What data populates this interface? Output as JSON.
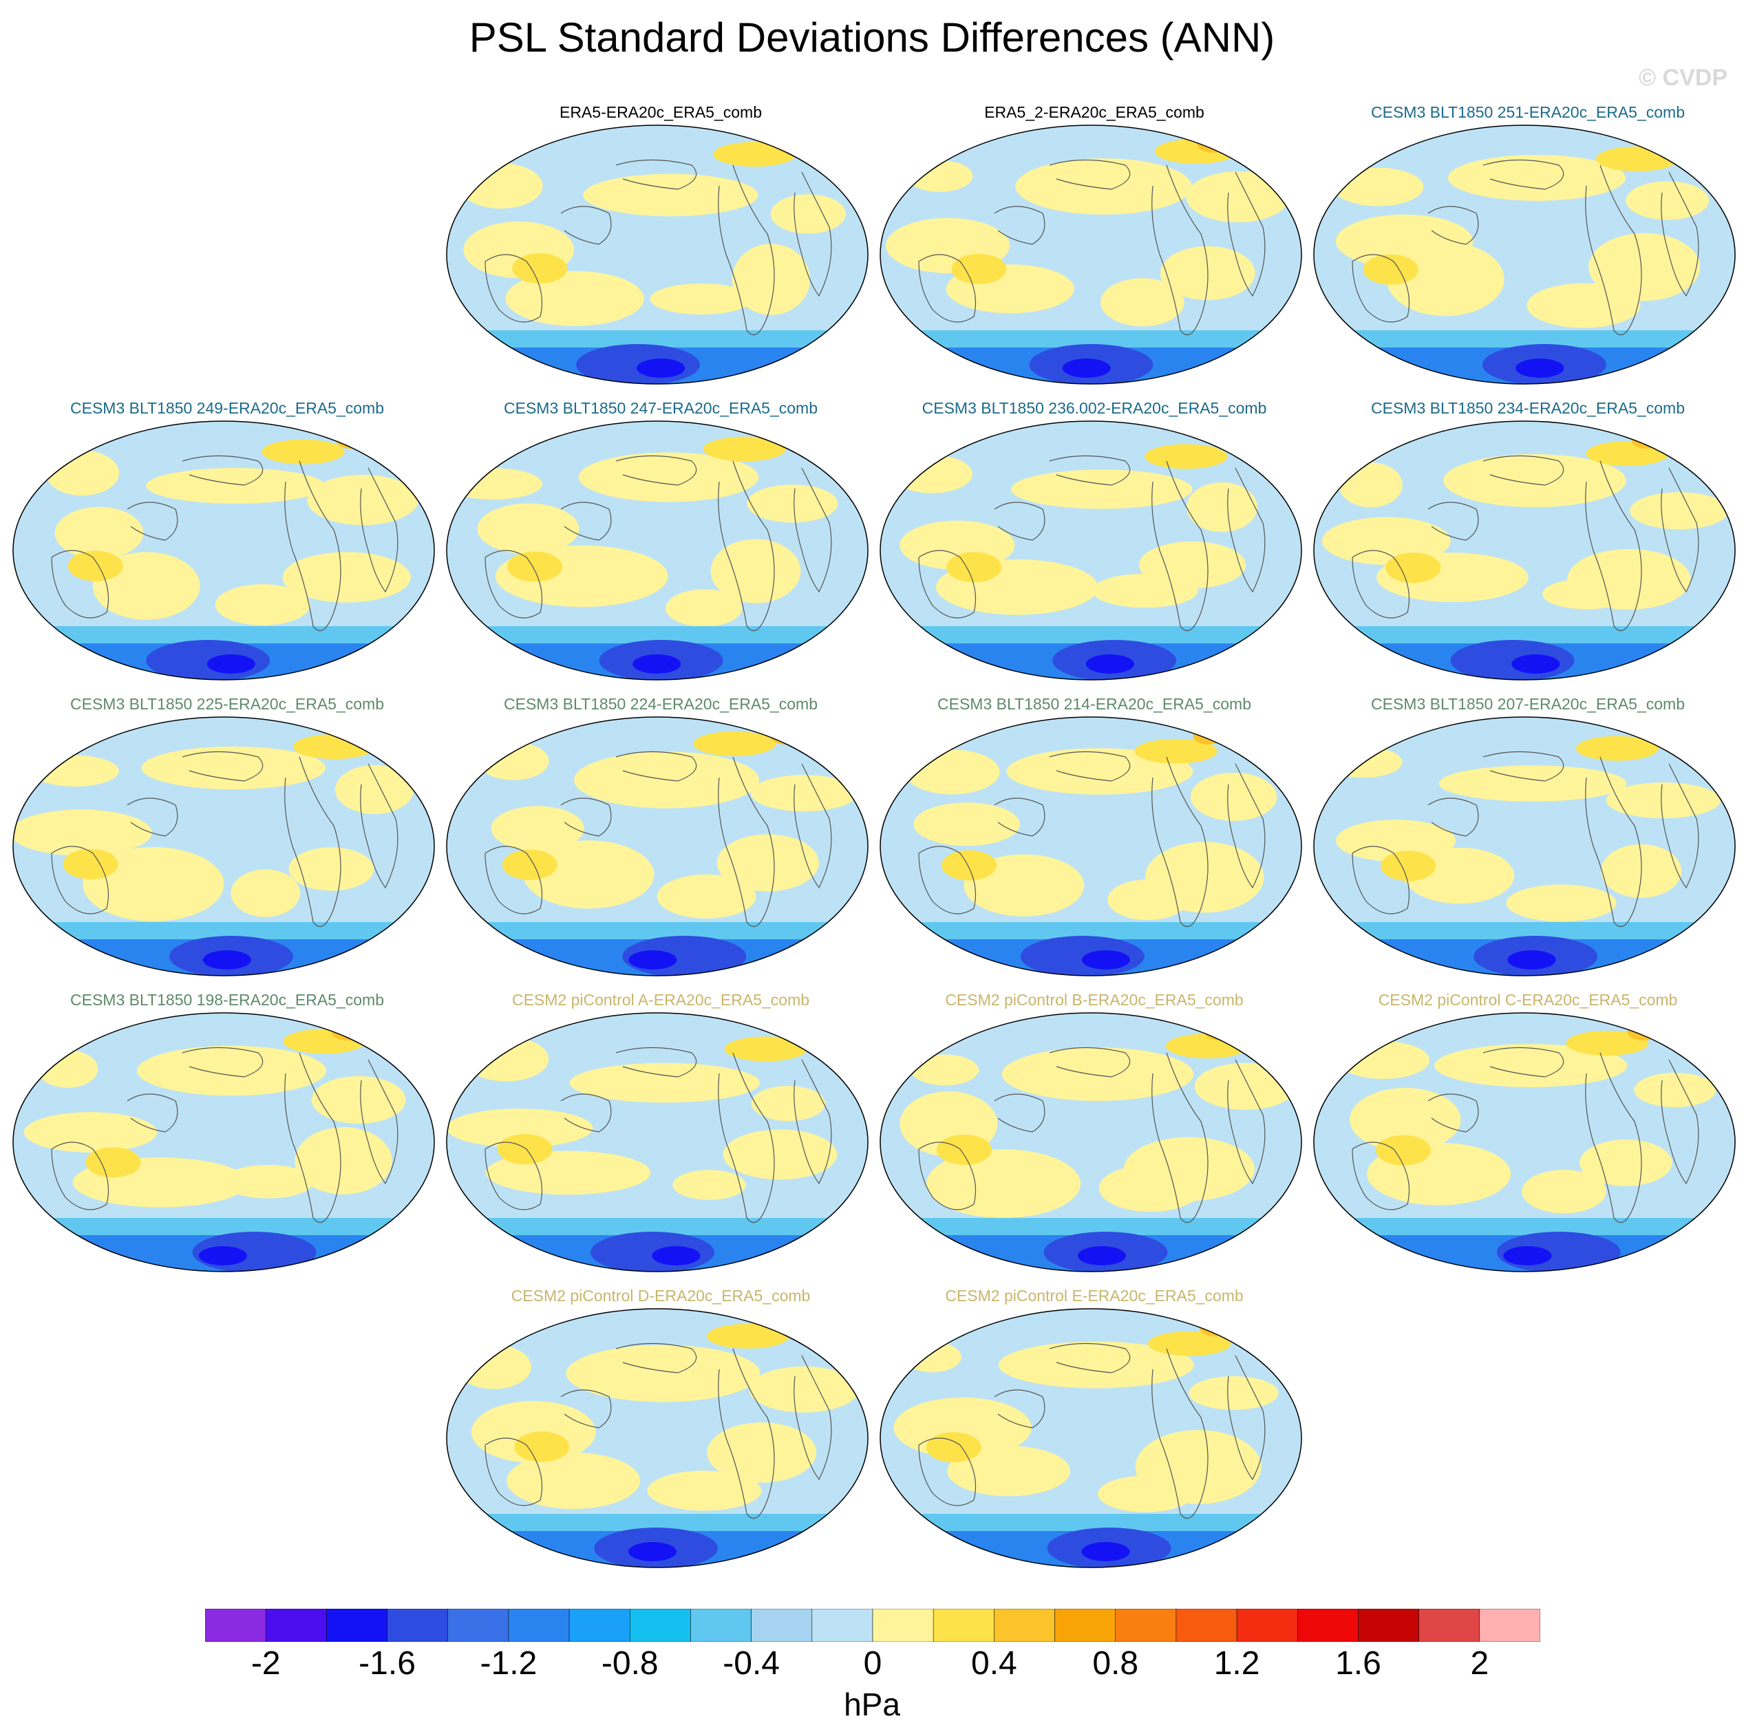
{
  "title": "PSL Standard Deviations Differences (ANN)",
  "watermark": "© CVDP",
  "units": "hPa",
  "colorbar": {
    "levels": [
      -2.2,
      -2,
      -1.8,
      -1.6,
      -1.4,
      -1.2,
      -1,
      -0.8,
      -0.6,
      -0.4,
      -0.2,
      0,
      0.2,
      0.4,
      0.6,
      0.8,
      1,
      1.2,
      1.4,
      1.6,
      1.8,
      2,
      2.2
    ],
    "colors": [
      "#8a2be2",
      "#4b0df0",
      "#1212f5",
      "#2e4de0",
      "#3a70e8",
      "#2a84f0",
      "#1aa0f8",
      "#14c0f0",
      "#60c8f0",
      "#a6d4f0",
      "#bde2f5",
      "#fff49a",
      "#fde24a",
      "#fbc42a",
      "#f9a406",
      "#f98010",
      "#f85a0e",
      "#f42c10",
      "#ee0808",
      "#c60404",
      "#e04646",
      "#ffb0b0"
    ],
    "tick_labels": [
      "-2",
      "-1.6",
      "-1.2",
      "-0.8",
      "-0.4",
      "0",
      "0.4",
      "0.8",
      "1.2",
      "1.6",
      "2"
    ]
  },
  "panels": [
    {
      "label": "ERA5-ERA20c_ERA5_comb",
      "color": "#000000"
    },
    {
      "label": "ERA5_2-ERA20c_ERA5_comb",
      "color": "#000000"
    },
    {
      "label": "CESM3 BLT1850 251-ERA20c_ERA5_comb",
      "color": "#1b6a8a"
    },
    {
      "label": "CESM3 BLT1850 249-ERA20c_ERA5_comb",
      "color": "#1b6a8a"
    },
    {
      "label": "CESM3 BLT1850 247-ERA20c_ERA5_comb",
      "color": "#1b6a8a"
    },
    {
      "label": "CESM3 BLT1850 236.002-ERA20c_ERA5_comb",
      "color": "#1b6a8a"
    },
    {
      "label": "CESM3 BLT1850 234-ERA20c_ERA5_comb",
      "color": "#1b6a8a"
    },
    {
      "label": "CESM3 BLT1850 225-ERA20c_ERA5_comb",
      "color": "#5e8a6a"
    },
    {
      "label": "CESM3 BLT1850 224-ERA20c_ERA5_comb",
      "color": "#5e8a6a"
    },
    {
      "label": "CESM3 BLT1850 214-ERA20c_ERA5_comb",
      "color": "#5e8a6a"
    },
    {
      "label": "CESM3 BLT1850 207-ERA20c_ERA5_comb",
      "color": "#5e8a6a"
    },
    {
      "label": "CESM3 BLT1850 198-ERA20c_ERA5_comb",
      "color": "#5e8a6a"
    },
    {
      "label": "CESM2 piControl A-ERA20c_ERA5_comb",
      "color": "#c9b56a"
    },
    {
      "label": "CESM2 piControl B-ERA20c_ERA5_comb",
      "color": "#c9b56a"
    },
    {
      "label": "CESM2 piControl C-ERA20c_ERA5_comb",
      "color": "#c9b56a"
    },
    {
      "label": "CESM2 piControl D-ERA20c_ERA5_comb",
      "color": "#c9b56a"
    },
    {
      "label": "CESM2 piControl E-ERA20c_ERA5_comb",
      "color": "#c9b56a"
    }
  ]
}
